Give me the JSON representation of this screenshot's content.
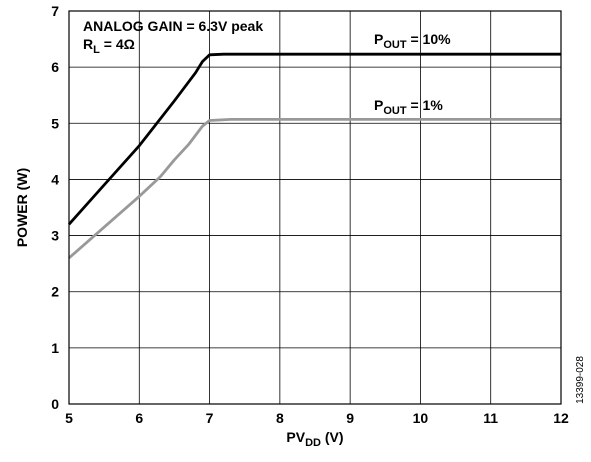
{
  "chart_data": {
    "type": "line",
    "xlabel": {
      "main": "PV",
      "sub": "DD",
      "unit": " (V)"
    },
    "ylabel": "POWER (W)",
    "xlim": [
      5,
      12
    ],
    "ylim": [
      0,
      7
    ],
    "xticks": [
      5,
      6,
      7,
      8,
      9,
      10,
      11,
      12
    ],
    "yticks": [
      0,
      1,
      2,
      3,
      4,
      5,
      6,
      7
    ],
    "grid": true,
    "annotations": [
      {
        "text": "ANALOG GAIN = 6.3V peak"
      },
      {
        "main": "R",
        "sub": "L",
        "rest": " = 4Ω"
      }
    ],
    "series": [
      {
        "name": {
          "main": "P",
          "sub": "OUT",
          "rest": " = 10%"
        },
        "color": "#000000",
        "x": [
          5.0,
          5.5,
          6.0,
          6.5,
          6.8,
          6.9,
          7.0,
          7.2,
          8,
          9,
          10,
          11,
          12
        ],
        "y": [
          3.2,
          3.9,
          4.6,
          5.4,
          5.9,
          6.1,
          6.22,
          6.23,
          6.23,
          6.23,
          6.23,
          6.23,
          6.23
        ]
      },
      {
        "name": {
          "main": "P",
          "sub": "OUT",
          "rest": " = 1%"
        },
        "color": "#999999",
        "x": [
          5.0,
          5.5,
          6.0,
          6.3,
          6.5,
          6.7,
          6.9,
          7.0,
          7.3,
          8,
          9,
          10,
          11,
          12
        ],
        "y": [
          2.6,
          3.15,
          3.7,
          4.05,
          4.35,
          4.62,
          4.95,
          5.05,
          5.07,
          5.07,
          5.07,
          5.07,
          5.07,
          5.07
        ]
      }
    ],
    "figure_id": "13399-028"
  }
}
